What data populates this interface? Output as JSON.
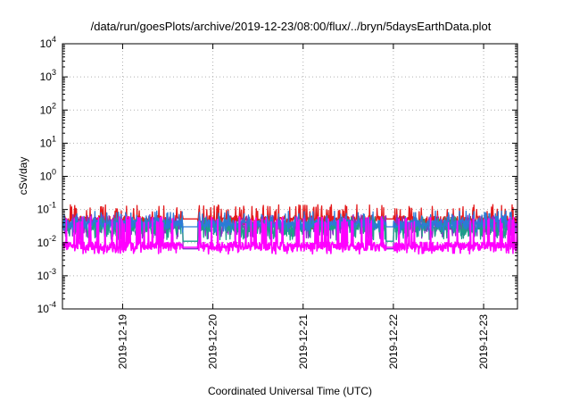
{
  "chart_data": {
    "type": "line",
    "title": "/data/run/goesPlots/archive/2019-12-23/08:00/flux/../bryn/5daysEarthData.plot",
    "xlabel": "Coordinated Universal Time (UTC)",
    "ylabel": "cSv/day",
    "y_scale": "log",
    "ylim": [
      0.0001,
      10000
    ],
    "y_ticks": [
      {
        "value": 0.0001,
        "base": "10",
        "exp": "-4"
      },
      {
        "value": 0.001,
        "base": "10",
        "exp": "-3"
      },
      {
        "value": 0.01,
        "base": "10",
        "exp": "-2"
      },
      {
        "value": 0.1,
        "base": "10",
        "exp": "-1"
      },
      {
        "value": 1,
        "base": "10",
        "exp": "0"
      },
      {
        "value": 10,
        "base": "10",
        "exp": "1"
      },
      {
        "value": 100,
        "base": "10",
        "exp": "2"
      },
      {
        "value": 1000,
        "base": "10",
        "exp": "3"
      },
      {
        "value": 10000,
        "base": "10",
        "exp": "4"
      }
    ],
    "xlim": [
      "2019-12-18 08:00",
      "2019-12-23 09:00"
    ],
    "x_ticks": [
      "2019-12-19",
      "2019-12-20",
      "2019-12-21",
      "2019-12-22",
      "2019-12-23"
    ],
    "grid": true,
    "data_gaps": [
      [
        "2019-12-19 16:00",
        "2019-12-19 20:00"
      ],
      [
        "2019-12-21 22:00",
        "2019-12-22 00:00"
      ]
    ],
    "series": [
      {
        "color": "#e41a1c",
        "base": 0.05,
        "low": 0.025,
        "high": 0.14,
        "gap_value": 0.052
      },
      {
        "color": "#8b2fc9",
        "base": 0.035,
        "low": 0.013,
        "high": 0.07,
        "gap_value": 0.0065
      },
      {
        "color": "#1f9e89",
        "base": 0.03,
        "low": 0.012,
        "high": 0.06,
        "gap_value": 0.011
      },
      {
        "color": "#2b7bd6",
        "base": 0.038,
        "low": 0.02,
        "high": 0.09,
        "gap_value": 0.03
      },
      {
        "color": "#ff00ff",
        "base": 0.008,
        "low": 0.0045,
        "high": 0.06,
        "gap_value": 0.0072
      }
    ]
  }
}
